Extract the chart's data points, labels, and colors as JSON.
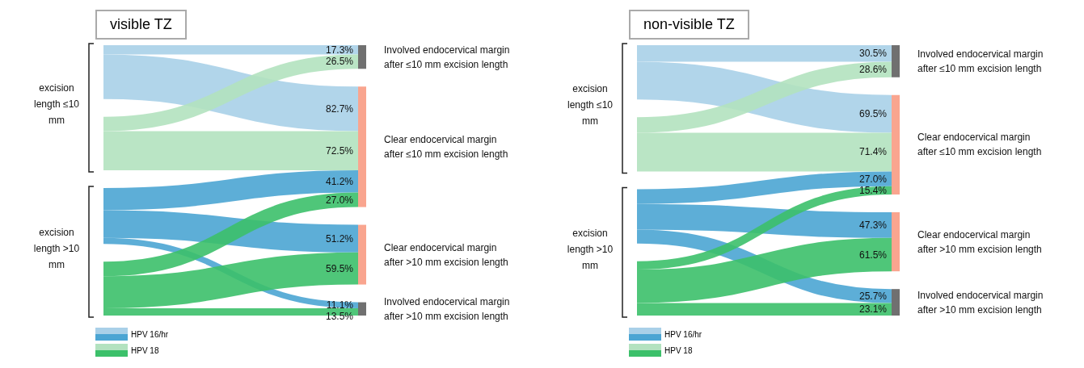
{
  "chart_data": [
    {
      "type": "other",
      "title": "visible TZ",
      "categories": [
        "Involved endocervical margin after ≤10 mm excision length",
        "Clear endocervical margin after ≤10 mm excision length",
        "Clear endocervical margin after >10 mm excision length",
        "Involved endocervical margin after >10 mm excision length"
      ],
      "colors": [
        "#707070",
        "#f9a58f",
        "#f9a58f",
        "#707070"
      ],
      "annotations": [
        "excision length ≤10 mm",
        "excision length >10 mm"
      ],
      "legend": "bottom left",
      "series": [
        {
          "name": "HPV 16/hr",
          "color": "#a9d0e8",
          "values": [
            17.3,
            82.7,
            null,
            null
          ],
          "value_labels": [
            "17.3%",
            "82.7%",
            null,
            null
          ]
        },
        {
          "name": "HPV 18",
          "color": "#b3e2bf",
          "values": [
            26.5,
            72.5,
            null,
            null
          ],
          "value_labels": [
            "26.5%",
            "72.5%",
            null,
            null
          ]
        },
        {
          "color": "#4ba5d3",
          "values": [
            null,
            41.2,
            51.2,
            11.1
          ],
          "value_labels": [
            null,
            "41.2%",
            "51.2%",
            "11.1%"
          ]
        },
        {
          "color": "#3cc06a",
          "values": [
            null,
            27.0,
            59.5,
            13.5
          ],
          "value_labels": [
            null,
            "27.0%",
            "59.5%",
            "13.5%"
          ]
        }
      ]
    },
    {
      "type": "other",
      "title": "non-visible TZ",
      "categories": [
        "Involved endocervical margin after ≤10 mm excision length",
        "Clear endocervical margin after ≤10 mm excision length",
        "Clear endocervical margin after >10 mm excision length",
        "Involved endocervical margin after >10 mm excision length"
      ],
      "colors": [
        "#707070",
        "#f9a58f",
        "#f9a58f",
        "#707070"
      ],
      "annotations": [
        "excision length ≤10 mm",
        "excision length >10 mm"
      ],
      "legend": "bottom left",
      "series": [
        {
          "name": "HPV 16/hr",
          "color": "#a9d0e8",
          "values": [
            30.5,
            69.5,
            null,
            null
          ],
          "value_labels": [
            "30.5%",
            "69.5%",
            null,
            null
          ]
        },
        {
          "name": "HPV 18",
          "color": "#b3e2bf",
          "values": [
            28.6,
            71.4,
            null,
            null
          ],
          "value_labels": [
            "28.6%",
            "71.4%",
            null,
            null
          ]
        },
        {
          "color": "#4ba5d3",
          "values": [
            null,
            27.0,
            47.3,
            25.7
          ],
          "value_labels": [
            null,
            "27.0%",
            "47.3%",
            "25.7%"
          ]
        },
        {
          "color": "#3cc06a",
          "values": [
            null,
            15.4,
            61.5,
            23.1
          ],
          "value_labels": [
            null,
            "15.4%",
            "61.5%",
            "23.1%"
          ]
        }
      ]
    }
  ]
}
